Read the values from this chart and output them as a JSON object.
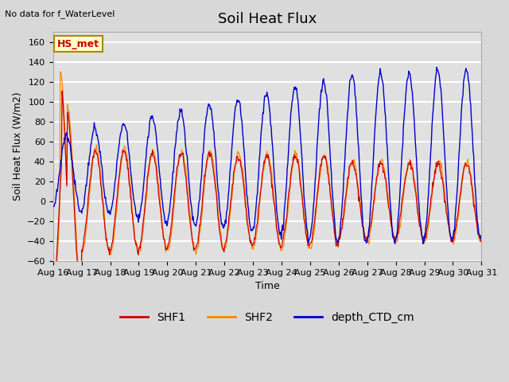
{
  "title": "Soil Heat Flux",
  "title_fontsize": 13,
  "ylabel": "Soil Heat Flux (W/m2)",
  "xlabel": "Time",
  "ylim": [
    -60,
    170
  ],
  "yticks": [
    -60,
    -40,
    -20,
    0,
    20,
    40,
    60,
    80,
    100,
    120,
    140,
    160
  ],
  "xtick_labels": [
    "Aug 16",
    "Aug 17",
    "Aug 18",
    "Aug 19",
    "Aug 20",
    "Aug 21",
    "Aug 22",
    "Aug 23",
    "Aug 24",
    "Aug 25",
    "Aug 26",
    "Aug 27",
    "Aug 28",
    "Aug 29",
    "Aug 30",
    "Aug 31"
  ],
  "top_left_text": "No data for f_WaterLevel",
  "station_label": "HS_met",
  "legend_entries": [
    "SHF1",
    "SHF2",
    "depth_CTD_cm"
  ],
  "line_colors": [
    "#cc0000",
    "#ff8800",
    "#0000cc"
  ],
  "background_color": "#e0e0e0",
  "grid_color": "#ffffff",
  "n_days": 15,
  "pts_per_day": 48,
  "seed": 42
}
